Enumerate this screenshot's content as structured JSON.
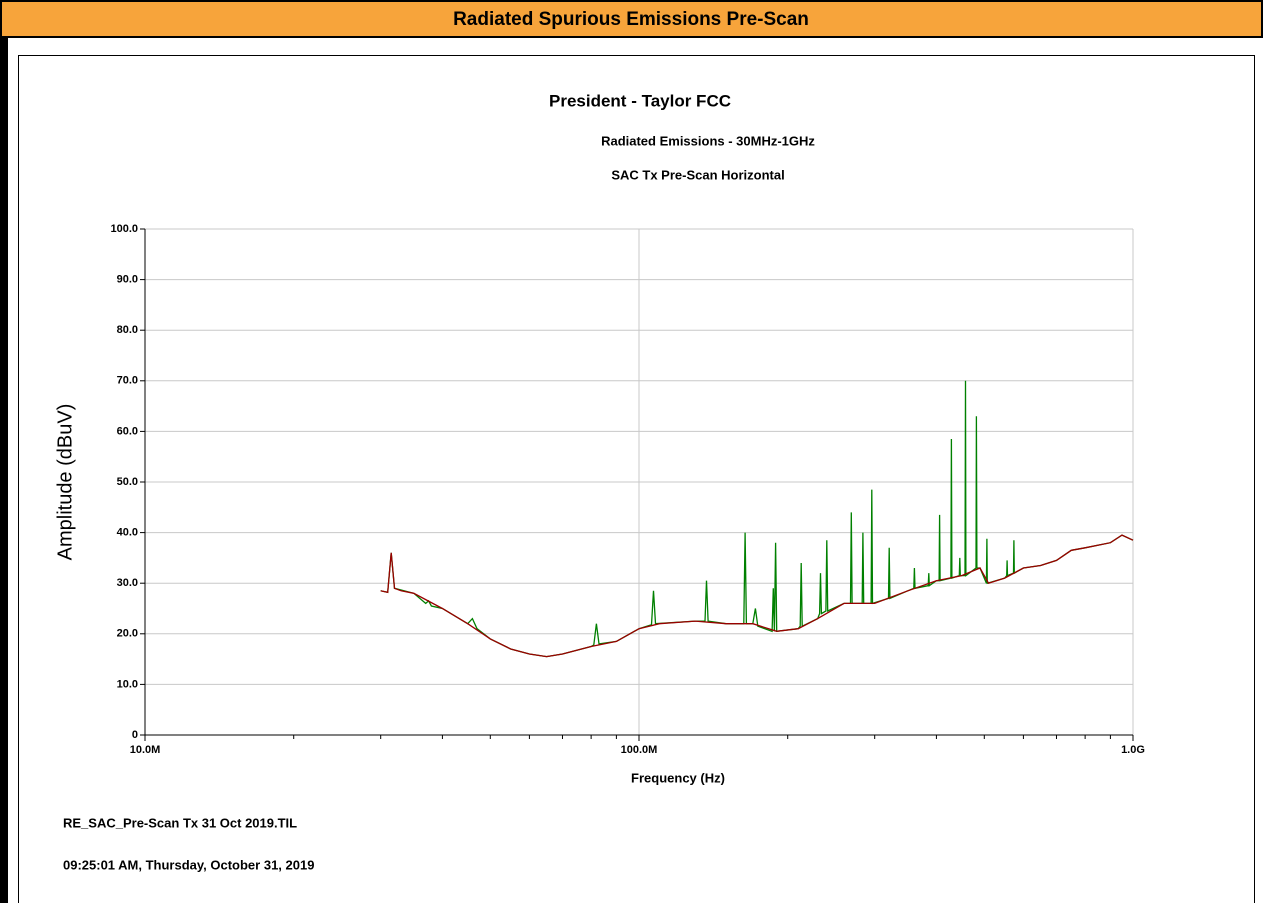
{
  "header": {
    "title": "Radiated Spurious Emissions Pre-Scan"
  },
  "chart_data": {
    "type": "line",
    "title": "President - Taylor FCC",
    "subtitle": "Radiated Emissions - 30MHz-1GHz",
    "subtitle2": "SAC Tx Pre-Scan Horizontal",
    "xlabel": "Frequency (Hz)",
    "ylabel": "Amplitude (dBuV)",
    "xscale": "log",
    "grid": true,
    "xlim": [
      10000000,
      1000000000
    ],
    "ylim": [
      0,
      100
    ],
    "xticks": [
      {
        "value": 10000000,
        "label": "10.0M"
      },
      {
        "value": 100000000,
        "label": "100.0M"
      },
      {
        "value": 1000000000,
        "label": "1.0G"
      }
    ],
    "xminorticks": [
      20000000,
      30000000,
      40000000,
      50000000,
      60000000,
      70000000,
      80000000,
      90000000,
      200000000,
      300000000,
      400000000,
      500000000,
      600000000,
      700000000,
      800000000,
      900000000
    ],
    "yticks": [
      0,
      {
        "value": 10,
        "label": "10.0"
      },
      {
        "value": 20,
        "label": "20.0"
      },
      {
        "value": 30,
        "label": "30.0"
      },
      {
        "value": 40,
        "label": "40.0"
      },
      {
        "value": 50,
        "label": "50.0"
      },
      {
        "value": 60,
        "label": "60.0"
      },
      {
        "value": 70,
        "label": "70.0"
      },
      {
        "value": 80,
        "label": "80.0"
      },
      {
        "value": 90,
        "label": "90.0"
      },
      {
        "value": 100,
        "label": "100.0"
      }
    ],
    "series": [
      {
        "color": "#008000",
        "x": [
          30000000,
          31000000,
          31500000,
          32000000,
          35000000,
          37000000,
          37500000,
          38000000,
          40000000,
          45000000,
          46000000,
          47000000,
          50000000,
          55000000,
          60000000,
          65000000,
          70000000,
          80000000,
          81000000,
          82000000,
          83000000,
          90000000,
          100000000,
          106000000,
          107000000,
          108000000,
          130000000,
          136000000,
          137000000,
          138000000,
          150000000,
          163000000,
          164000000,
          165000000,
          170000000,
          172000000,
          174000000,
          186000000,
          187000000,
          188000000,
          189000000,
          190000000,
          210000000,
          212000000,
          213000000,
          214000000,
          230000000,
          232000000,
          233000000,
          234000000,
          239000000,
          240000000,
          241000000,
          260000000,
          268000000,
          269000000,
          270000000,
          283000000,
          284000000,
          285000000,
          295000000,
          296000000,
          297000000,
          320000000,
          321000000,
          322000000,
          350000000,
          360000000,
          361000000,
          362000000,
          385000000,
          386000000,
          387000000,
          400000000,
          405000000,
          406000000,
          407000000,
          428000000,
          429000000,
          430000000,
          445000000,
          446000000,
          447000000,
          457000000,
          458000000,
          459000000,
          481000000,
          482000000,
          483000000,
          490000000,
          505000000,
          506000000,
          507000000,
          550000000,
          555000000,
          556000000,
          557000000,
          573000000,
          574000000,
          575000000,
          600000000,
          650000000,
          700000000,
          750000000,
          800000000,
          900000000,
          950000000,
          1000000000
        ],
        "values": [
          28.5,
          28.2,
          36,
          29,
          28,
          26,
          26.5,
          25.5,
          25,
          22,
          23,
          21,
          19,
          17,
          16,
          15.5,
          16,
          17.5,
          17.8,
          22,
          18,
          18.5,
          21,
          21.8,
          28.5,
          22,
          22.5,
          22.5,
          30.5,
          22.5,
          22,
          22,
          40,
          22,
          22,
          25,
          21.5,
          20.5,
          29,
          20.5,
          38,
          20.5,
          21,
          21.5,
          34,
          21.5,
          23,
          24,
          32,
          24,
          24.5,
          38.5,
          24.5,
          26,
          26,
          44,
          26,
          26,
          40,
          26,
          26,
          48.5,
          26,
          27,
          37,
          27,
          28.5,
          29,
          33,
          29,
          29.5,
          32,
          29.5,
          30.5,
          30.5,
          43.5,
          30.5,
          31,
          58.5,
          31,
          31.5,
          35,
          31.5,
          31.5,
          70,
          31.5,
          33,
          63,
          33,
          33,
          30,
          38.8,
          30,
          31,
          31.5,
          34.5,
          31.5,
          32,
          38.5,
          32,
          33,
          33.5,
          34.5,
          36.5,
          37,
          38,
          39.5,
          38.5
        ]
      },
      {
        "color": "#990000",
        "x": [
          30000000,
          31000000,
          31500000,
          32000000,
          33000000,
          35000000,
          40000000,
          45000000,
          50000000,
          55000000,
          60000000,
          65000000,
          70000000,
          80000000,
          90000000,
          100000000,
          110000000,
          130000000,
          150000000,
          170000000,
          190000000,
          210000000,
          230000000,
          260000000,
          300000000,
          350000000,
          400000000,
          450000000,
          490000000,
          510000000,
          550000000,
          600000000,
          650000000,
          700000000,
          750000000,
          800000000,
          900000000,
          950000000,
          1000000000
        ],
        "values": [
          28.5,
          28.2,
          36,
          29,
          28.5,
          28,
          25,
          22,
          19,
          17,
          16,
          15.5,
          16,
          17.5,
          18.5,
          21,
          22,
          22.5,
          22,
          22,
          20.5,
          21,
          23,
          26,
          26,
          28.5,
          30.5,
          31.5,
          33,
          30,
          31,
          33,
          33.5,
          34.5,
          36.5,
          37,
          38,
          39.5,
          38.5
        ]
      }
    ]
  },
  "footer": {
    "file": "RE_SAC_Pre-Scan Tx 31 Oct 2019.TIL",
    "timestamp": "09:25:01 AM, Thursday, October 31, 2019"
  }
}
